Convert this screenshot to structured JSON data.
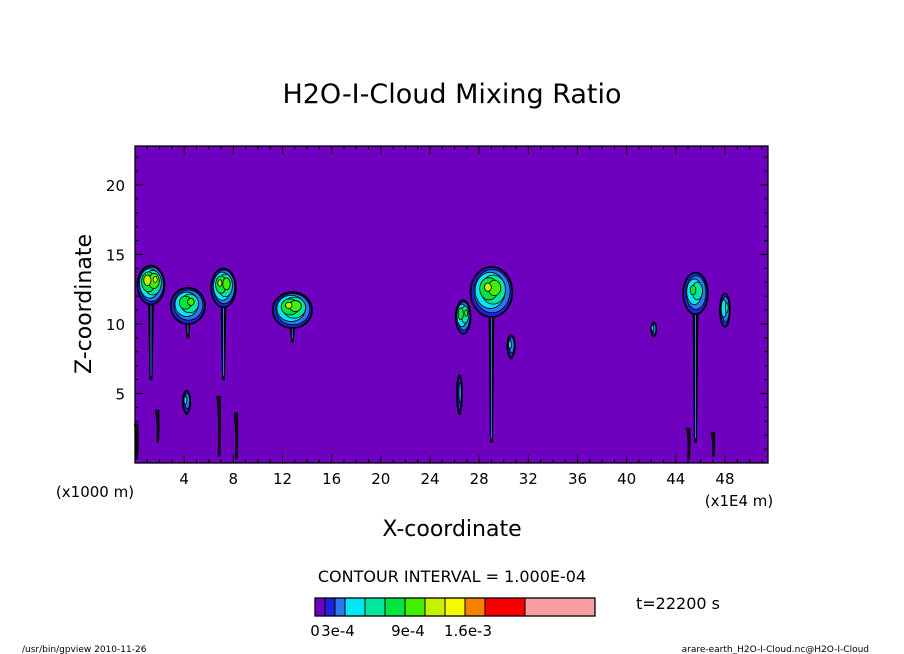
{
  "chart_data": {
    "type": "contour",
    "title": "H2O-I-Cloud Mixing Ratio",
    "xlabel": "X-coordinate",
    "ylabel": "Z-coordinate",
    "x_unit_left": "(x1000 m)",
    "x_unit_right": "(x1E4 m)",
    "xlim": [
      0,
      51.5
    ],
    "ylim": [
      0,
      22.8
    ],
    "x_ticks": [
      "4",
      "8",
      "12",
      "16",
      "20",
      "24",
      "28",
      "32",
      "36",
      "40",
      "44",
      "48"
    ],
    "y_ticks": [
      "5",
      "10",
      "15",
      "20"
    ],
    "contour_interval": "CONTOUR INTERVAL = 1.000E-04",
    "time": "t=22200 s",
    "colorbar_labels": [
      "0",
      "3e-4",
      "9e-4",
      "1.6e-3"
    ],
    "colorbar_colors": [
      "#7000c0",
      "#2020e0",
      "#2878f0",
      "#00e8f8",
      "#00e8a0",
      "#00e840",
      "#40f000",
      "#c8f000",
      "#f8f800",
      "#f88000",
      "#f80000",
      "#f8a0a0"
    ],
    "background_color": "#7000c0",
    "clouds": [
      {
        "x": 1.3,
        "z": 12.8,
        "peak": 7,
        "rx": 1.1,
        "ry": 1.4,
        "stem_to": 6.0
      },
      {
        "x": 4.3,
        "z": 11.3,
        "peak": 5,
        "rx": 1.4,
        "ry": 1.3,
        "stem_to": 9.0
      },
      {
        "x": 7.2,
        "z": 12.6,
        "peak": 6,
        "rx": 1.0,
        "ry": 1.4,
        "stem_to": 6.0
      },
      {
        "x": 12.8,
        "z": 11.0,
        "peak": 6,
        "rx": 1.6,
        "ry": 1.3,
        "stem_to": 8.7
      },
      {
        "x": 26.7,
        "z": 10.5,
        "peak": 5,
        "rx": 0.6,
        "ry": 1.2,
        "stem_to": 9.6
      },
      {
        "x": 29.0,
        "z": 12.3,
        "peak": 6,
        "rx": 1.7,
        "ry": 1.8,
        "stem_to": 1.5
      },
      {
        "x": 45.6,
        "z": 12.2,
        "peak": 4,
        "rx": 1.0,
        "ry": 1.5,
        "stem_to": 1.5
      },
      {
        "x": 48.0,
        "z": 11.0,
        "peak": 3,
        "rx": 0.4,
        "ry": 1.2,
        "stem_to": 9.8
      },
      {
        "x": 42.2,
        "z": 9.6,
        "peak": 2,
        "rx": 0.2,
        "ry": 0.5,
        "stem_to": 9.3
      },
      {
        "x": 30.6,
        "z": 8.4,
        "peak": 2,
        "rx": 0.3,
        "ry": 0.8,
        "stem_to": 7.5
      },
      {
        "x": 4.2,
        "z": 4.4,
        "peak": 2,
        "rx": 0.3,
        "ry": 0.8,
        "stem_to": 3.5
      },
      {
        "x": 26.4,
        "z": 5.0,
        "peak": 1,
        "rx": 0.2,
        "ry": 1.3,
        "stem_to": 3.5
      }
    ],
    "streaks": [
      {
        "x": 6.8,
        "z0": 0.5,
        "z1": 4.8
      },
      {
        "x": 8.2,
        "z0": 0.3,
        "z1": 3.6
      },
      {
        "x": 1.8,
        "z0": 1.5,
        "z1": 3.8
      },
      {
        "x": 0.1,
        "z0": 0.3,
        "z1": 2.8
      },
      {
        "x": 45.0,
        "z0": 0.3,
        "z1": 2.5
      },
      {
        "x": 47.0,
        "z0": 0.5,
        "z1": 2.2
      }
    ],
    "footer_left": "/usr/bin/gpview  2010-11-26",
    "footer_right": "arare-earth_H2O-I-Cloud.nc@H2O-I-Cloud"
  }
}
